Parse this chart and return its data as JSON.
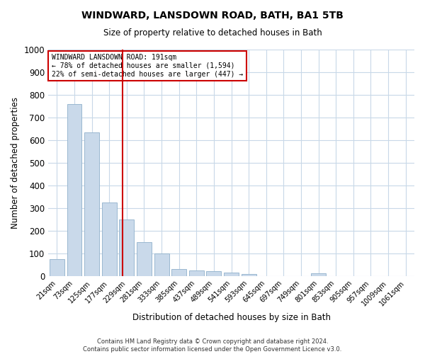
{
  "title": "WINDWARD, LANSDOWN ROAD, BATH, BA1 5TB",
  "subtitle": "Size of property relative to detached houses in Bath",
  "xlabel": "Distribution of detached houses by size in Bath",
  "ylabel": "Number of detached properties",
  "footer_line1": "Contains HM Land Registry data © Crown copyright and database right 2024.",
  "footer_line2": "Contains public sector information licensed under the Open Government Licence v3.0.",
  "annotation_line1": "WINDWARD LANSDOWN ROAD: 191sqm",
  "annotation_line2": "← 78% of detached houses are smaller (1,594)",
  "annotation_line3": "22% of semi-detached houses are larger (447) →",
  "bar_color": "#c9d9ea",
  "bar_edge_color": "#9ab8d0",
  "vline_color": "#cc0000",
  "annotation_box_color": "#cc0000",
  "background_color": "#ffffff",
  "grid_color": "#c8d8e8",
  "tick_labels": [
    "21sqm",
    "73sqm",
    "125sqm",
    "177sqm",
    "229sqm",
    "281sqm",
    "333sqm",
    "385sqm",
    "437sqm",
    "489sqm",
    "541sqm",
    "593sqm",
    "645sqm",
    "697sqm",
    "749sqm",
    "801sqm",
    "853sqm",
    "905sqm",
    "957sqm",
    "1009sqm",
    "1061sqm"
  ],
  "bar_centers": [
    0,
    1,
    2,
    3,
    4,
    5,
    6,
    7,
    8,
    9,
    10,
    11,
    12,
    13,
    14,
    15,
    16,
    17,
    18,
    19,
    20
  ],
  "values": [
    75,
    760,
    635,
    325,
    250,
    150,
    100,
    30,
    25,
    20,
    15,
    8,
    0,
    0,
    0,
    12,
    0,
    0,
    0,
    0,
    0
  ],
  "vline_bar_index": 3.75,
  "ylim": [
    0,
    1000
  ],
  "yticks": [
    0,
    100,
    200,
    300,
    400,
    500,
    600,
    700,
    800,
    900,
    1000
  ]
}
